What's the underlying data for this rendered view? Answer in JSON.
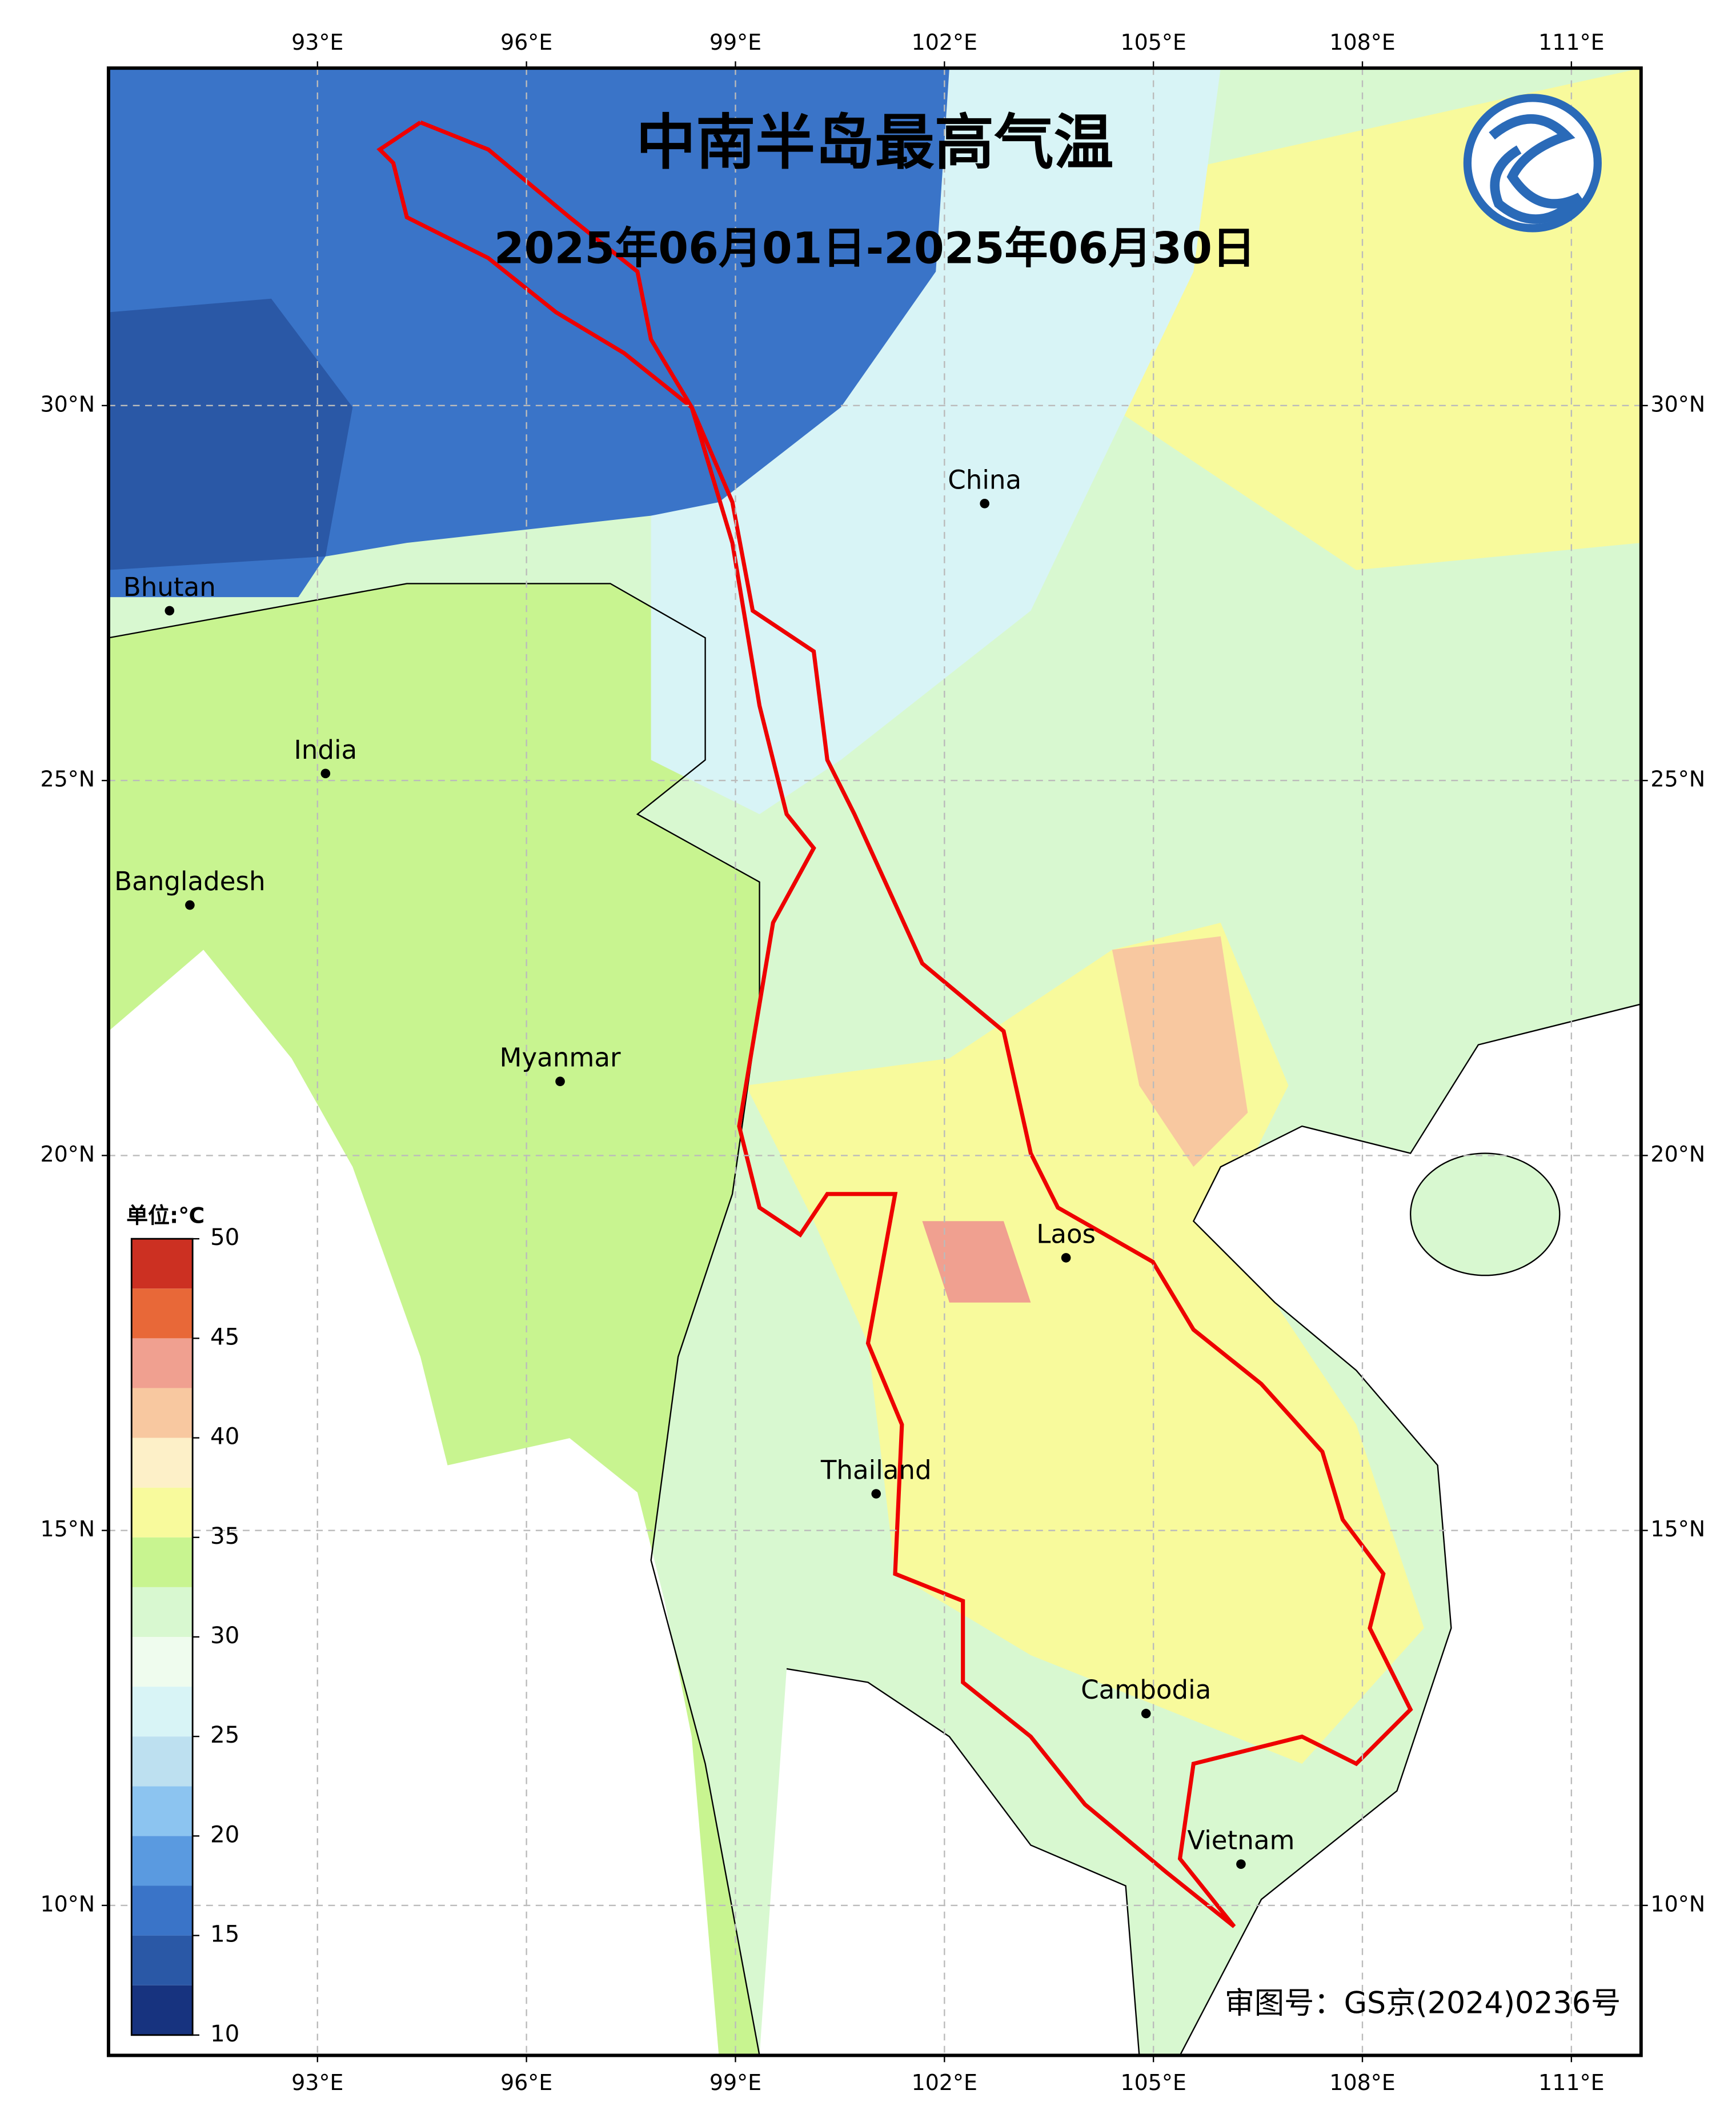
{
  "header": {
    "title": "中南半岛最高气温",
    "subtitle": "2025年06月01日-2025年06月30日"
  },
  "map": {
    "xlim": [
      90,
      112
    ],
    "ylim": [
      8,
      34.5
    ],
    "xticks": [
      {
        "value": 93,
        "label": "93°E"
      },
      {
        "value": 96,
        "label": "96°E"
      },
      {
        "value": 99,
        "label": "99°E"
      },
      {
        "value": 102,
        "label": "102°E"
      },
      {
        "value": 105,
        "label": "105°E"
      },
      {
        "value": 108,
        "label": "108°E"
      },
      {
        "value": 111,
        "label": "111°E"
      }
    ],
    "yticks": [
      {
        "value": 10,
        "label": "10°N"
      },
      {
        "value": 15,
        "label": "15°N"
      },
      {
        "value": 20,
        "label": "20°N"
      },
      {
        "value": 25,
        "label": "25°N"
      },
      {
        "value": 30,
        "label": "30°N"
      }
    ],
    "grid": true,
    "places": [
      "China",
      "Bhutan",
      "India",
      "Bangladesh",
      "Myanmar",
      "Laos",
      "Thailand",
      "Cambodia",
      "Vietnam"
    ]
  },
  "colorbar": {
    "label": "单位:℃",
    "levels": [
      10,
      12.5,
      15,
      17.5,
      20,
      22.5,
      25,
      27.5,
      30,
      32.5,
      35,
      37.5,
      40,
      42.5,
      45,
      47.5,
      50
    ],
    "colors": [
      "#17337f",
      "#2a58a6",
      "#3a74c8",
      "#5a9ae0",
      "#8cc4f0",
      "#bde0f0",
      "#d8f4f6",
      "#effcee",
      "#d8f8d0",
      "#c8f490",
      "#f8fa9c",
      "#fdf0c8",
      "#f8c8a0",
      "#f0a090",
      "#e86838",
      "#cc3022"
    ],
    "ticks": [
      10,
      15,
      20,
      25,
      30,
      35,
      40,
      45,
      50
    ]
  },
  "footer": {
    "approval": "审图号：GS京(2024)0236号"
  }
}
